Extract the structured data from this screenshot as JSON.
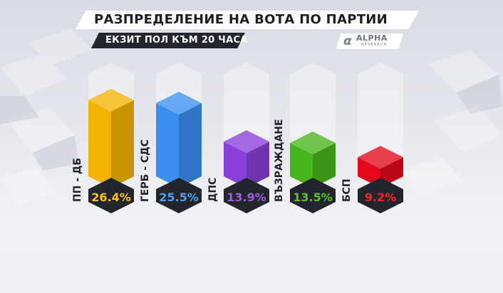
{
  "header": {
    "title": "РАЗПРЕДЕЛЕНИЕ НА ВОТА ПО ПАРТИИ",
    "subtitle": "ЕКЗИТ ПОЛ КЪМ 20 ЧАСА"
  },
  "logo": {
    "name": "ALPHA",
    "tagline": "RESEARCH",
    "icon": "alpha-logo-icon"
  },
  "chart_data": {
    "type": "bar",
    "title": "РАЗПРЕДЕЛЕНИЕ НА ВОТА ПО ПАРТИИ",
    "subtitle": "ЕКЗИТ ПОЛ КЪМ 20 ЧАСА",
    "categories": [
      "ПП - ДБ",
      "ГЕРБ - СДС",
      "ДПС",
      "ВЪЗРАЖДАНЕ",
      "БСП"
    ],
    "values": [
      26.4,
      25.5,
      13.9,
      13.5,
      9.2
    ],
    "data_labels": [
      "26.4%",
      "25.5%",
      "13.9%",
      "13.5%",
      "9.2%"
    ],
    "unit": "%",
    "colors": [
      "#f5b301",
      "#3a8ff0",
      "#8a3fd8",
      "#49b51c",
      "#e3081a"
    ],
    "label_colors": [
      "#ffc20e",
      "#4f9ff5",
      "#a05ae6",
      "#5cc12a",
      "#ff2020"
    ],
    "ylim": [
      0,
      30
    ],
    "grid": false,
    "legend": "none"
  }
}
